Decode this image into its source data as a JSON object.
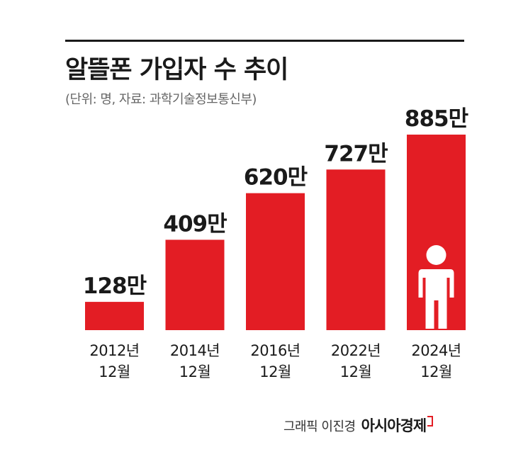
{
  "header": {
    "title": "알뜰폰 가입자 수 추이",
    "subtitle": "(단위: 명, 자료: 과학기술정보통신부)"
  },
  "credit": {
    "author": "그래픽 이진경",
    "brand": "아시아경제"
  },
  "colors": {
    "bar": "#e31d24",
    "text": "#1a1a1a",
    "icon": "#ffffff"
  },
  "chart_data": {
    "type": "bar",
    "categories": [
      [
        "2012년",
        "12월"
      ],
      [
        "2014년",
        "12월"
      ],
      [
        "2016년",
        "12월"
      ],
      [
        "2022년",
        "12월"
      ],
      [
        "2024년",
        "12월"
      ]
    ],
    "values": [
      128,
      409,
      620,
      727,
      885
    ],
    "data_labels": [
      "128만",
      "409만",
      "620만",
      "727만",
      "885만"
    ],
    "ylim": [
      0,
      885
    ],
    "grid": false,
    "highlight_icon": "person-icon",
    "highlight_index": 4
  }
}
